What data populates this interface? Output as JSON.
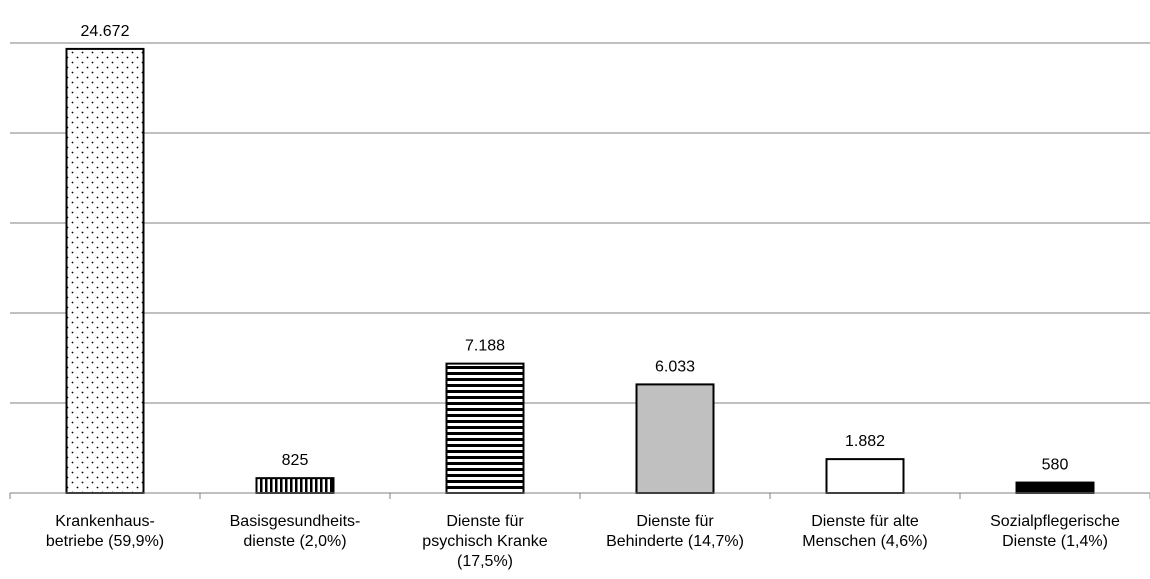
{
  "chart_data": {
    "type": "bar",
    "title": "",
    "xlabel": "",
    "ylabel": "",
    "ylim": [
      0,
      25000
    ],
    "grid": true,
    "legend": "none",
    "categories": [
      [
        "Krankenhaus-",
        "betriebe (59,9%)"
      ],
      [
        "Basisgesundheits-",
        "dienste (2,0%)"
      ],
      [
        "Dienste für",
        "psychisch Kranke",
        "(17,5%)"
      ],
      [
        "Dienste für",
        "Behinderte (14,7%)"
      ],
      [
        "Dienste für alte",
        "Menschen (4,6%)"
      ],
      [
        "Sozialpflegerische",
        "Dienste (1,4%)"
      ]
    ],
    "values": [
      24672,
      825,
      7188,
      6033,
      1882,
      580
    ],
    "value_labels": [
      "24.672",
      "825",
      "7.188",
      "6.033",
      "1.882",
      "580"
    ],
    "bar_styles": [
      "dots",
      "vertical-stripes",
      "horizontal-stripes",
      "gray",
      "white",
      "black"
    ],
    "colors": {
      "stroke": "#000000",
      "gray_fill": "#c0c0c0",
      "black_fill": "#000000",
      "white_fill": "#ffffff",
      "grid": "#808080"
    }
  }
}
